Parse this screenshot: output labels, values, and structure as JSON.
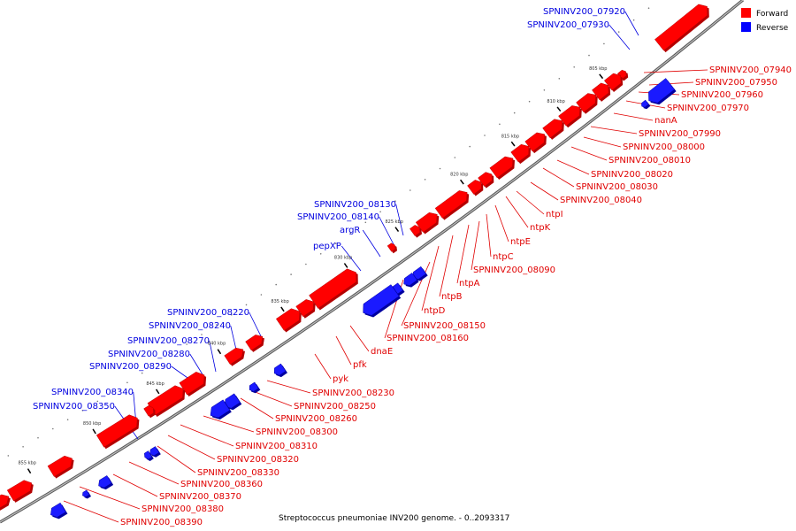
{
  "caption": "Streptococcus pneumoniae INV200 genome. - 0..2093317",
  "legend": [
    {
      "label": "Forward",
      "color": "#ff0000"
    },
    {
      "label": "Reverse",
      "color": "#0000ff"
    }
  ],
  "colors": {
    "forward": "#ff0000",
    "forward_dark": "#b40000",
    "reverse": "#1a1aff",
    "reverse_dark": "#0000a0",
    "backbone": "#7f7f7f"
  },
  "ticks": [
    "805 kbp",
    "810 kbp",
    "815 kbp",
    "820 kbp",
    "825 kbp",
    "830 kbp",
    "835 kbp",
    "840 kbp",
    "845 kbp",
    "850 kbp",
    "855 kbp"
  ],
  "forward_labels": [
    "SPNINV200_07940",
    "SPNINV200_07950",
    "SPNINV200_07960",
    "SPNINV200_07970",
    "nanA",
    "SPNINV200_07990",
    "SPNINV200_08000",
    "SPNINV200_08010",
    "SPNINV200_08020",
    "SPNINV200_08030",
    "SPNINV200_08040",
    "ntpI",
    "ntpK",
    "ntpE",
    "ntpC",
    "SPNINV200_08090",
    "ntpA",
    "ntpB",
    "ntpD",
    "SPNINV200_08150",
    "SPNINV200_08160",
    "dnaE",
    "pfk",
    "pyk",
    "SPNINV200_08230",
    "SPNINV200_08250",
    "SPNINV200_08260",
    "SPNINV200_08300",
    "SPNINV200_08310",
    "SPNINV200_08320",
    "SPNINV200_08330",
    "SPNINV200_08360",
    "SPNINV200_08370",
    "SPNINV200_08380",
    "SPNINV200_08390"
  ],
  "reverse_labels": [
    "SPNINV200_07920",
    "SPNINV200_07930",
    "SPNINV200_08130",
    "SPNINV200_08140",
    "argR",
    "pepXP",
    "SPNINV200_08220",
    "SPNINV200_08240",
    "SPNINV200_08270",
    "SPNINV200_08280",
    "SPNINV200_08290",
    "SPNINV200_08340",
    "SPNINV200_08350"
  ]
}
